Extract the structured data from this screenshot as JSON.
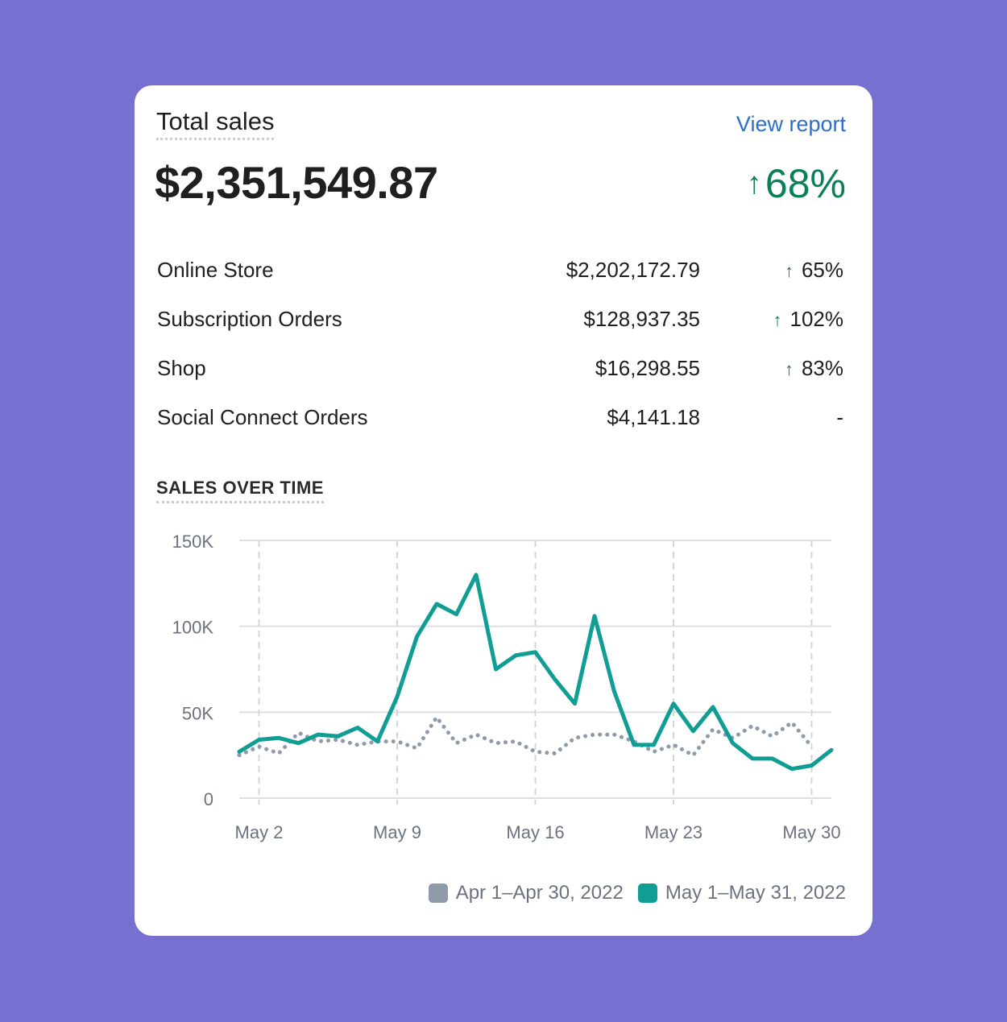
{
  "card": {
    "title": "Total sales",
    "view_report_label": "View report",
    "total_value": "$2,351,549.87",
    "total_change": "68%",
    "total_change_arrow": "↑"
  },
  "breakdown": [
    {
      "name": "Online Store",
      "amount": "$2,202,172.79",
      "arrow": "↑",
      "change": "65%"
    },
    {
      "name": "Subscription Orders",
      "amount": "$128,937.35",
      "arrow": "↑",
      "change": "102%"
    },
    {
      "name": "Shop",
      "amount": "$16,298.55",
      "arrow": "↑",
      "change": "83%"
    },
    {
      "name": "Social Connect Orders",
      "amount": "$4,141.18",
      "arrow": "",
      "change": "-"
    }
  ],
  "section": {
    "sales_over_time_title": "SALES OVER TIME"
  },
  "colors": {
    "background": "#7870d0",
    "positive": "#0a7f5a",
    "link": "#2c6ecb",
    "current_series": "#0f9d94",
    "previous_series": "#8f9aaa"
  },
  "chart_data": {
    "type": "line",
    "title": "SALES OVER TIME",
    "xlabel": "",
    "ylabel": "",
    "ylim": [
      0,
      150000
    ],
    "yticks": [
      0,
      50000,
      100000,
      150000
    ],
    "ytick_labels": [
      "0",
      "50K",
      "100K",
      "150K"
    ],
    "xticks": [
      2,
      9,
      16,
      23,
      30
    ],
    "xtick_labels": [
      "May 2",
      "May 9",
      "May 16",
      "May 23",
      "May 30"
    ],
    "xlim": [
      1,
      31
    ],
    "grid": true,
    "series": [
      {
        "name": "Apr 1–Apr 30, 2022",
        "style": "dotted",
        "color": "#8f9aaa",
        "x": [
          1,
          2,
          3,
          4,
          5,
          6,
          7,
          8,
          9,
          10,
          11,
          12,
          13,
          14,
          15,
          16,
          17,
          18,
          19,
          20,
          21,
          22,
          23,
          24,
          25,
          26,
          27,
          28,
          29,
          30
        ],
        "values": [
          25000,
          30000,
          26000,
          38000,
          33000,
          34000,
          31000,
          33000,
          33000,
          29000,
          47000,
          32000,
          37000,
          32000,
          33000,
          27000,
          26000,
          35000,
          37000,
          37000,
          33000,
          27000,
          31000,
          25000,
          40000,
          35000,
          42000,
          36000,
          44000,
          30000
        ]
      },
      {
        "name": "May 1–May 31, 2022",
        "style": "solid",
        "color": "#0f9d94",
        "x": [
          1,
          2,
          3,
          4,
          5,
          6,
          7,
          8,
          9,
          10,
          11,
          12,
          13,
          14,
          15,
          16,
          17,
          18,
          19,
          20,
          21,
          22,
          23,
          24,
          25,
          26,
          27,
          28,
          29,
          30,
          31
        ],
        "values": [
          27000,
          34000,
          35000,
          32000,
          37000,
          36000,
          41000,
          33000,
          59000,
          94000,
          113000,
          107000,
          130000,
          75000,
          83000,
          85000,
          69000,
          55000,
          106000,
          62000,
          31000,
          31000,
          55000,
          39000,
          53000,
          32000,
          23000,
          23000,
          17000,
          19000,
          28000
        ]
      }
    ]
  }
}
